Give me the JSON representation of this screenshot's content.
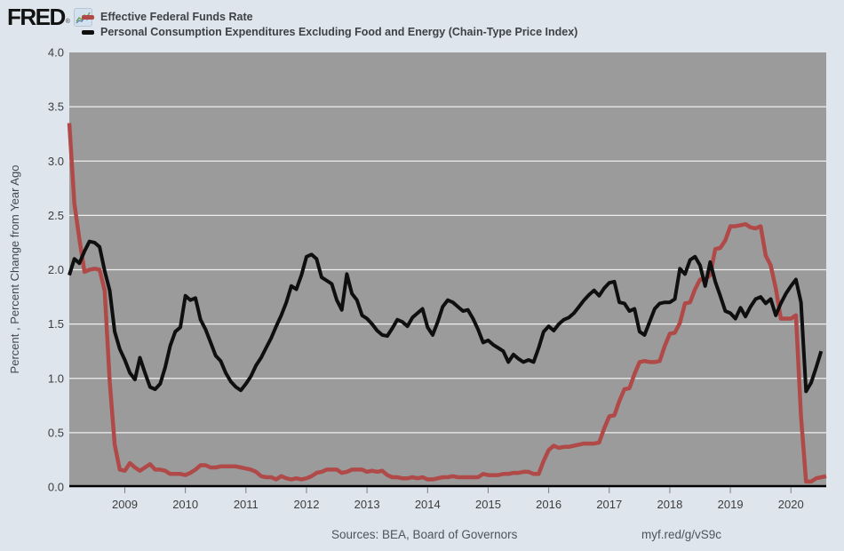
{
  "header": {
    "logo_text": "FRED",
    "registered_mark": "®",
    "legend": [
      {
        "label": "Effective Federal Funds Rate",
        "color": "#b04a48"
      },
      {
        "label": "Personal Consumption Expenditures Excluding Food and Energy (Chain-Type Price Index)",
        "color": "#0f0f0f"
      }
    ]
  },
  "footer": {
    "sources": "Sources: BEA, Board of Governors",
    "short_url": "myf.red/g/vS9c"
  },
  "colors": {
    "outer_background": "#dee5ed",
    "plot_background": "#9b9b9b",
    "gridline": "#efefef",
    "axis_line": "#000000",
    "tick_text": "#3d3d3d",
    "ffr_line": "#b04a48",
    "pce_line": "#0f0f0f"
  },
  "chart_data": {
    "type": "line",
    "title": "",
    "xlabel": "",
    "ylabel": "Percent , Percent Change from Year Ago",
    "xlim": [
      2008.083,
      2020.583
    ],
    "ylim": [
      0,
      4
    ],
    "grid": "horizontal",
    "legend_position": "top-left",
    "yticks": [
      {
        "v": 0.0,
        "label": "0.0"
      },
      {
        "v": 0.5,
        "label": "0.5"
      },
      {
        "v": 1.0,
        "label": "1.0"
      },
      {
        "v": 1.5,
        "label": "1.5"
      },
      {
        "v": 2.0,
        "label": "2.0"
      },
      {
        "v": 2.5,
        "label": "2.5"
      },
      {
        "v": 3.0,
        "label": "3.0"
      },
      {
        "v": 3.5,
        "label": "3.5"
      },
      {
        "v": 4.0,
        "label": "4.0"
      }
    ],
    "xticks": [
      {
        "v": 2009,
        "label": "2009"
      },
      {
        "v": 2010,
        "label": "2010"
      },
      {
        "v": 2011,
        "label": "2011"
      },
      {
        "v": 2012,
        "label": "2012"
      },
      {
        "v": 2013,
        "label": "2013"
      },
      {
        "v": 2014,
        "label": "2014"
      },
      {
        "v": 2015,
        "label": "2015"
      },
      {
        "v": 2016,
        "label": "2016"
      },
      {
        "v": 2017,
        "label": "2017"
      },
      {
        "v": 2018,
        "label": "2018"
      },
      {
        "v": 2019,
        "label": "2019"
      },
      {
        "v": 2020,
        "label": "2020"
      }
    ],
    "series": [
      {
        "name": "Effective Federal Funds Rate",
        "units": "Percent",
        "color": "#b04a48",
        "frequency": "monthly",
        "start": 2008.0833,
        "step": 0.0833333,
        "values": [
          3.35,
          2.61,
          2.28,
          1.98,
          2.0,
          2.01,
          2.0,
          1.81,
          0.97,
          0.39,
          0.16,
          0.15,
          0.22,
          0.18,
          0.15,
          0.18,
          0.21,
          0.16,
          0.16,
          0.15,
          0.12,
          0.12,
          0.12,
          0.11,
          0.13,
          0.16,
          0.2,
          0.2,
          0.18,
          0.18,
          0.19,
          0.19,
          0.19,
          0.19,
          0.18,
          0.17,
          0.16,
          0.14,
          0.1,
          0.09,
          0.09,
          0.07,
          0.1,
          0.08,
          0.07,
          0.08,
          0.07,
          0.08,
          0.1,
          0.13,
          0.14,
          0.16,
          0.16,
          0.16,
          0.13,
          0.14,
          0.16,
          0.16,
          0.16,
          0.14,
          0.15,
          0.14,
          0.15,
          0.11,
          0.09,
          0.09,
          0.08,
          0.08,
          0.09,
          0.08,
          0.09,
          0.07,
          0.07,
          0.08,
          0.09,
          0.09,
          0.1,
          0.09,
          0.09,
          0.09,
          0.09,
          0.09,
          0.12,
          0.11,
          0.11,
          0.11,
          0.12,
          0.12,
          0.13,
          0.13,
          0.14,
          0.14,
          0.12,
          0.12,
          0.24,
          0.34,
          0.38,
          0.36,
          0.37,
          0.37,
          0.38,
          0.39,
          0.4,
          0.4,
          0.4,
          0.41,
          0.54,
          0.65,
          0.66,
          0.79,
          0.9,
          0.91,
          1.04,
          1.15,
          1.16,
          1.15,
          1.15,
          1.16,
          1.3,
          1.41,
          1.42,
          1.51,
          1.69,
          1.7,
          1.82,
          1.91,
          1.91,
          1.95,
          2.19,
          2.2,
          2.27,
          2.4,
          2.4,
          2.41,
          2.42,
          2.39,
          2.38,
          2.4,
          2.13,
          2.04,
          1.83,
          1.55,
          1.55,
          1.55,
          1.58,
          0.65,
          0.05,
          0.05,
          0.08,
          0.09,
          0.1
        ]
      },
      {
        "name": "Personal Consumption Expenditures Excluding Food and Energy (Chain-Type Price Index)",
        "units": "Percent Change from Year Ago",
        "color": "#0f0f0f",
        "frequency": "monthly",
        "start": 2008.0833,
        "step": 0.0833333,
        "values": [
          1.95,
          2.1,
          2.06,
          2.17,
          2.26,
          2.25,
          2.21,
          1.99,
          1.81,
          1.43,
          1.27,
          1.17,
          1.05,
          0.99,
          1.19,
          1.05,
          0.92,
          0.9,
          0.95,
          1.1,
          1.3,
          1.43,
          1.47,
          1.76,
          1.72,
          1.74,
          1.54,
          1.45,
          1.33,
          1.21,
          1.16,
          1.05,
          0.97,
          0.92,
          0.89,
          0.95,
          1.02,
          1.12,
          1.19,
          1.28,
          1.37,
          1.48,
          1.58,
          1.7,
          1.85,
          1.82,
          1.95,
          2.12,
          2.14,
          2.1,
          1.93,
          1.9,
          1.87,
          1.72,
          1.63,
          1.96,
          1.78,
          1.72,
          1.58,
          1.55,
          1.5,
          1.44,
          1.4,
          1.39,
          1.46,
          1.54,
          1.52,
          1.48,
          1.56,
          1.6,
          1.64,
          1.47,
          1.4,
          1.52,
          1.66,
          1.72,
          1.7,
          1.66,
          1.62,
          1.63,
          1.55,
          1.45,
          1.33,
          1.35,
          1.31,
          1.28,
          1.25,
          1.15,
          1.22,
          1.18,
          1.15,
          1.17,
          1.15,
          1.28,
          1.43,
          1.48,
          1.44,
          1.5,
          1.54,
          1.56,
          1.6,
          1.66,
          1.72,
          1.77,
          1.81,
          1.76,
          1.83,
          1.88,
          1.89,
          1.7,
          1.69,
          1.62,
          1.64,
          1.43,
          1.4,
          1.52,
          1.64,
          1.69,
          1.7,
          1.7,
          1.73,
          2.01,
          1.96,
          2.09,
          2.12,
          2.04,
          1.85,
          2.07,
          1.89,
          1.76,
          1.62,
          1.6,
          1.55,
          1.65,
          1.57,
          1.66,
          1.73,
          1.75,
          1.69,
          1.73,
          1.58,
          1.69,
          1.78,
          1.85,
          1.91,
          1.7,
          0.88,
          0.96,
          1.1,
          1.25
        ]
      }
    ]
  }
}
